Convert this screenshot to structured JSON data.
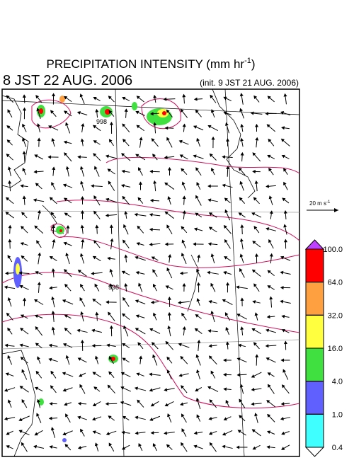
{
  "header": {
    "title": {
      "text": "PRECIPITATION INTENSITY (mm hr",
      "sup": "-1",
      "end": ")"
    },
    "valid_time": "8 JST 22 AUG. 2006",
    "init_time": "(init. 9 JST 21 AUG. 2006)"
  },
  "wind_scale": {
    "text": "20 m s",
    "sup": "-1"
  },
  "isobar_labels": [
    "998",
    "998"
  ],
  "colorbar": {
    "levels": [
      {
        "value": 100,
        "label": "100.0"
      },
      {
        "value": 64,
        "label": "64.0"
      },
      {
        "value": 32,
        "label": "32.0"
      },
      {
        "value": 16,
        "label": "16.0"
      },
      {
        "value": 4,
        "label": "4.0"
      },
      {
        "value": 1,
        "label": "1.0"
      },
      {
        "value": 0.4,
        "label": "0.4"
      }
    ],
    "colors": [
      "#ff0000",
      "#ffa040",
      "#ffff40",
      "#40e040",
      "#6060ff",
      "#40ffff"
    ],
    "over_color": "#c040ff",
    "under_color": "#ffffff"
  }
}
